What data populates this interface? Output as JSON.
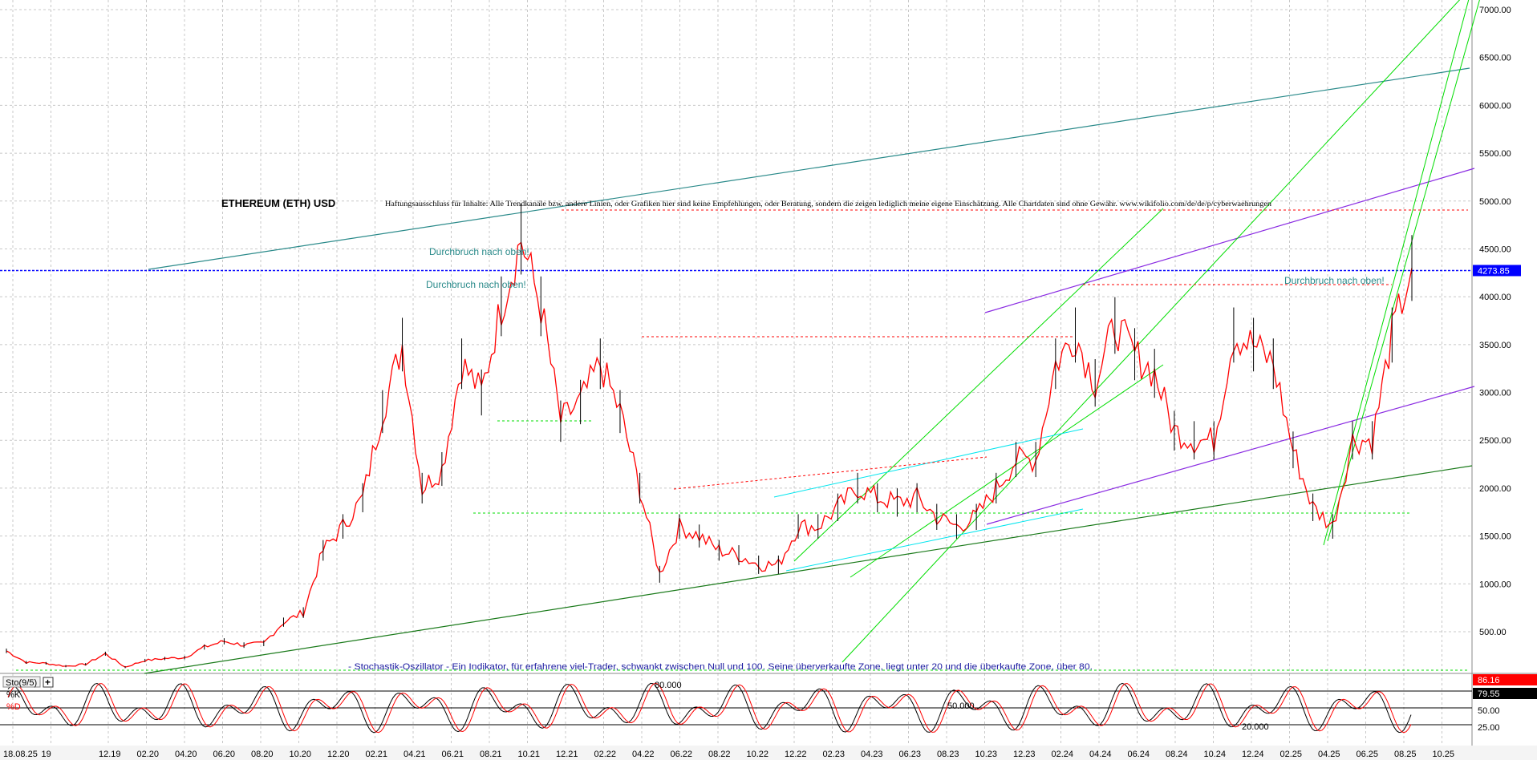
{
  "title": "ETHEREUM (ETH) USD",
  "disclaimer": "Haftungsausschluss für Inhalte: Alle Trendkanäle bzw. andere Linien, oder Grafiken hier sind keine Empfehlungen, oder Beratung, sondern die zeigen lediglich meine eigene Einschätzung. Alle Chartdaten sind ohne Gewähr. www.wikifolio.com/de/de/p/cyberwaehrungen",
  "annotations": {
    "breakout_1": "Durchbruch nach oben!",
    "breakout_2": "Durchbruch nach oben!",
    "breakout_3": "Durchbruch nach oben!",
    "stochastic_note": "- Stochastik-Oszillator - Ein Indikator, für erfahrene viel-Trader, schwankt zwischen Null und 100. Seine überverkaufte Zone, liegt unter 20 und die überkaufte Zone, über 80."
  },
  "price_axis": {
    "ticks": [
      "7000.00",
      "6500.00",
      "6000.00",
      "5500.00",
      "5000.00",
      "4500.00",
      "4000.00",
      "3500.00",
      "3000.00",
      "2500.00",
      "2000.00",
      "1500.00",
      "1000.00",
      "500.00"
    ],
    "current_price_label": "4273.85",
    "current_price": 4273.85
  },
  "indicator": {
    "name": "Sto(9/5)",
    "k_label": "%K",
    "d_label": "%D",
    "value_k": "86.16",
    "value_d": "79.55",
    "ticks": [
      "50.00",
      "25.00"
    ],
    "level_80": "80.000",
    "level_50": "50.000",
    "level_20": "20.000"
  },
  "x_axis": {
    "labels": [
      "18.08.25",
      "19",
      "12.19",
      "02.20",
      "04.20",
      "06.20",
      "08.20",
      "10.20",
      "12.20",
      "02.21",
      "04.21",
      "06.21",
      "08.21",
      "10.21",
      "12.21",
      "02.22",
      "04.22",
      "06.22",
      "08.22",
      "10.22",
      "12.22",
      "02.23",
      "04.23",
      "06.23",
      "08.23",
      "10.23",
      "12.23",
      "02.24",
      "04.24",
      "06.24",
      "08.24",
      "10.24",
      "12.24",
      "02.25",
      "04.25",
      "06.25",
      "08.25",
      "10.25"
    ]
  },
  "colors": {
    "candle_up": "#000000",
    "candle_down": "#ff0000",
    "price_line": "#0000ff",
    "channel_teal": "#2a8a8a",
    "channel_purple": "#8a2be2",
    "trend_green": "#00cc00",
    "trend_darkgreen": "#1a7a1a",
    "trend_cyan": "#00e5ee",
    "annotation_teal": "#2a8a8a"
  },
  "chart_data": {
    "type": "line",
    "title": "ETHEREUM (ETH) USD",
    "xlabel": "",
    "ylabel": "",
    "ylim": [
      0,
      7200
    ],
    "grid": true,
    "x": [
      "2019-09",
      "2019-10",
      "2019-11",
      "2019-12",
      "2020-01",
      "2020-02",
      "2020-03",
      "2020-04",
      "2020-05",
      "2020-06",
      "2020-07",
      "2020-08",
      "2020-09",
      "2020-10",
      "2020-11",
      "2020-12",
      "2021-01",
      "2021-02",
      "2021-03",
      "2021-04",
      "2021-05",
      "2021-06",
      "2021-07",
      "2021-08",
      "2021-09",
      "2021-10",
      "2021-11",
      "2021-12",
      "2022-01",
      "2022-02",
      "2022-03",
      "2022-04",
      "2022-05",
      "2022-06",
      "2022-07",
      "2022-08",
      "2022-09",
      "2022-10",
      "2022-11",
      "2022-12",
      "2023-01",
      "2023-02",
      "2023-03",
      "2023-04",
      "2023-05",
      "2023-06",
      "2023-07",
      "2023-08",
      "2023-09",
      "2023-10",
      "2023-11",
      "2023-12",
      "2024-01",
      "2024-02",
      "2024-03",
      "2024-04",
      "2024-05",
      "2024-06",
      "2024-07",
      "2024-08",
      "2024-09",
      "2024-10",
      "2024-11",
      "2024-12",
      "2025-01",
      "2025-02",
      "2025-03",
      "2025-04",
      "2025-05",
      "2025-06",
      "2025-07",
      "2025-08"
    ],
    "series": [
      {
        "values": [
          300,
          180,
          170,
          140,
          160,
          270,
          130,
          200,
          220,
          230,
          340,
          400,
          360,
          380,
          600,
          700,
          1350,
          1600,
          1900,
          2800,
          3500,
          2000,
          2200,
          3300,
          3000,
          3900,
          4600,
          3900,
          2700,
          2900,
          3300,
          2800,
          2000,
          1100,
          1600,
          1500,
          1350,
          1300,
          1200,
          1200,
          1600,
          1600,
          1800,
          2000,
          1900,
          1850,
          1900,
          1700,
          1600,
          1700,
          2000,
          2300,
          2300,
          3300,
          3600,
          3100,
          3700,
          3400,
          3200,
          2600,
          2500,
          2500,
          3600,
          3500,
          3300,
          2400,
          1800,
          1600,
          2500,
          2500,
          3600,
          4300
        ]
      }
    ],
    "reference_line": 4273.85
  }
}
